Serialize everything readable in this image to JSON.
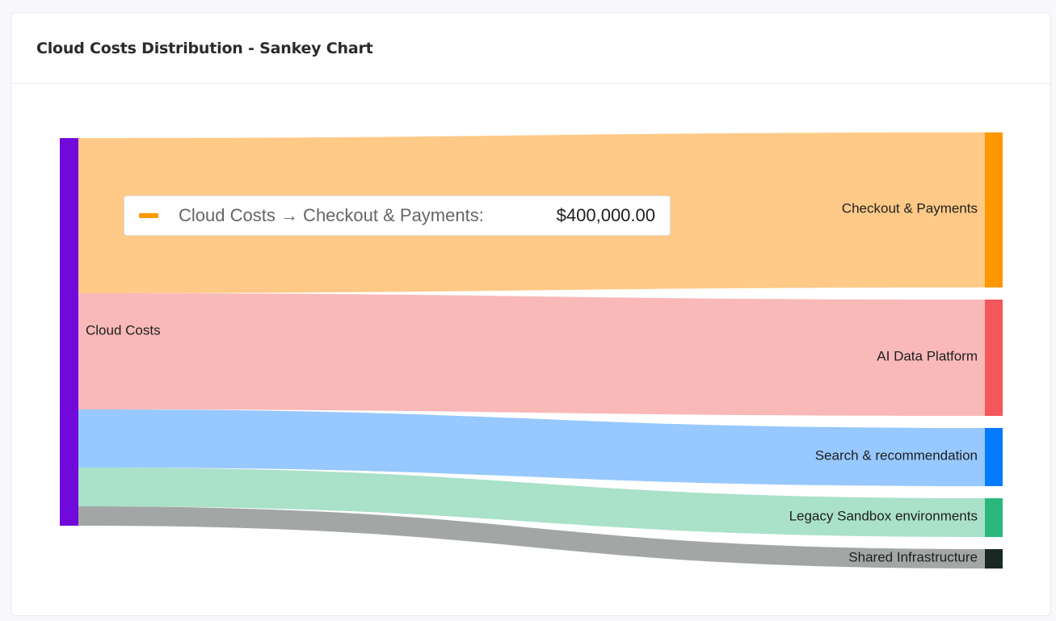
{
  "header": {
    "title": "Cloud Costs Distribution - Sankey Chart"
  },
  "tooltip": {
    "label": "Cloud Costs → Checkout & Payments:",
    "value": "$400,000.00",
    "color": "#ff9800"
  },
  "chart_data": {
    "type": "sankey",
    "title": "Cloud Costs Distribution - Sankey Chart",
    "nodes": [
      {
        "name": "Cloud Costs",
        "color": "#7209db"
      },
      {
        "name": "Checkout & Payments",
        "color": "#ff9800"
      },
      {
        "name": "AI Data Platform",
        "color": "#f45659"
      },
      {
        "name": "Search & recommendation",
        "color": "#047bff"
      },
      {
        "name": "Legacy Sandbox environments",
        "color": "#2bb67c"
      },
      {
        "name": "Shared Infrastructure",
        "color": "#1a2924"
      }
    ],
    "links": [
      {
        "source": "Cloud Costs",
        "target": "Checkout & Payments",
        "value": 400000,
        "color": "#ffca87"
      },
      {
        "source": "Cloud Costs",
        "target": "AI Data Platform",
        "value": 300000,
        "color": "#f9b9b9"
      },
      {
        "source": "Cloud Costs",
        "target": "Search & recommendation",
        "value": 150000,
        "color": "#97c8ff"
      },
      {
        "source": "Cloud Costs",
        "target": "Legacy Sandbox environments",
        "value": 100000,
        "color": "#aae1c9"
      },
      {
        "source": "Cloud Costs",
        "target": "Shared Infrastructure",
        "value": 50000,
        "color": "#a2a7a6"
      }
    ],
    "units": "USD"
  }
}
